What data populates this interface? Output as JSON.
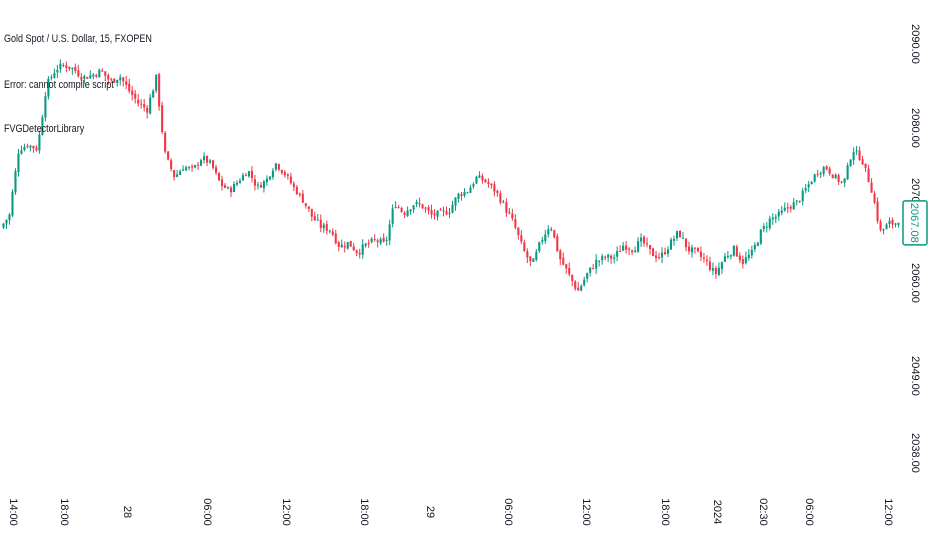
{
  "header": {
    "symbol_line": "Gold Spot / U.S. Dollar, 15, FXOPEN",
    "error_line": "Error: cannot compile script",
    "indicator_line": "FVGDetectorLibrary"
  },
  "last_price_label": "2067.08",
  "colors": {
    "up": "#089981",
    "down": "#f23645",
    "text": "#131722",
    "background": "#ffffff"
  },
  "chart_data": {
    "type": "candlestick",
    "y_ticks": [
      "2090.00",
      "2080.00",
      "2070.00",
      "2060.00",
      "2049.00",
      "2038.00"
    ],
    "x_ticks": [
      "14:00",
      "18:00",
      "28",
      "06:00",
      "12:00",
      "18:00",
      "29",
      "06:00",
      "12:00",
      "18:00",
      "2024",
      "02:30",
      "06:00",
      "12:00"
    ],
    "last_price": 2067.08,
    "ylim": [
      2038,
      2090
    ],
    "close_path": [
      2066.5,
      2068.0,
      2077.0,
      2077.6,
      2077.0,
      2085.0,
      2087.0,
      2087.5,
      2087.0,
      2086.0,
      2086.3,
      2086.8,
      2085.5,
      2086.2,
      2084.5,
      2083.0,
      2082.2,
      2086.0,
      2076.0,
      2073.0,
      2074.5,
      2074.0,
      2075.8,
      2074.8,
      2072.0,
      2071.0,
      2072.5,
      2074.0,
      2071.5,
      2072.5,
      2075.0,
      2073.5,
      2071.5,
      2069.8,
      2067.8,
      2066.6,
      2066.3,
      2064.3,
      2064.7,
      2063.6,
      2064.6,
      2065.0,
      2064.5,
      2069.5,
      2068.2,
      2069.3,
      2069.1,
      2068.0,
      2068.1,
      2068.6,
      2070.5,
      2071.0,
      2073.0,
      2072.3,
      2071.0,
      2069.0,
      2067.0,
      2064.0,
      2062.0,
      2065.0,
      2067.0,
      2063.0,
      2061.0,
      2059.0,
      2061.0,
      2062.5,
      2063.0,
      2063.0,
      2064.5,
      2064.0,
      2065.0,
      2063.5,
      2063.0,
      2064.5,
      2066.0,
      2064.0,
      2063.5,
      2062.5,
      2061.0,
      2063.0,
      2064.0,
      2062.5,
      2063.5,
      2066.0,
      2067.5,
      2068.0,
      2069.0,
      2069.5,
      2071.5,
      2073.5,
      2074.5,
      2073.0,
      2072.0,
      2077.0,
      2075.5,
      2071.5,
      2066.0,
      2067.0,
      2067.08
    ]
  }
}
